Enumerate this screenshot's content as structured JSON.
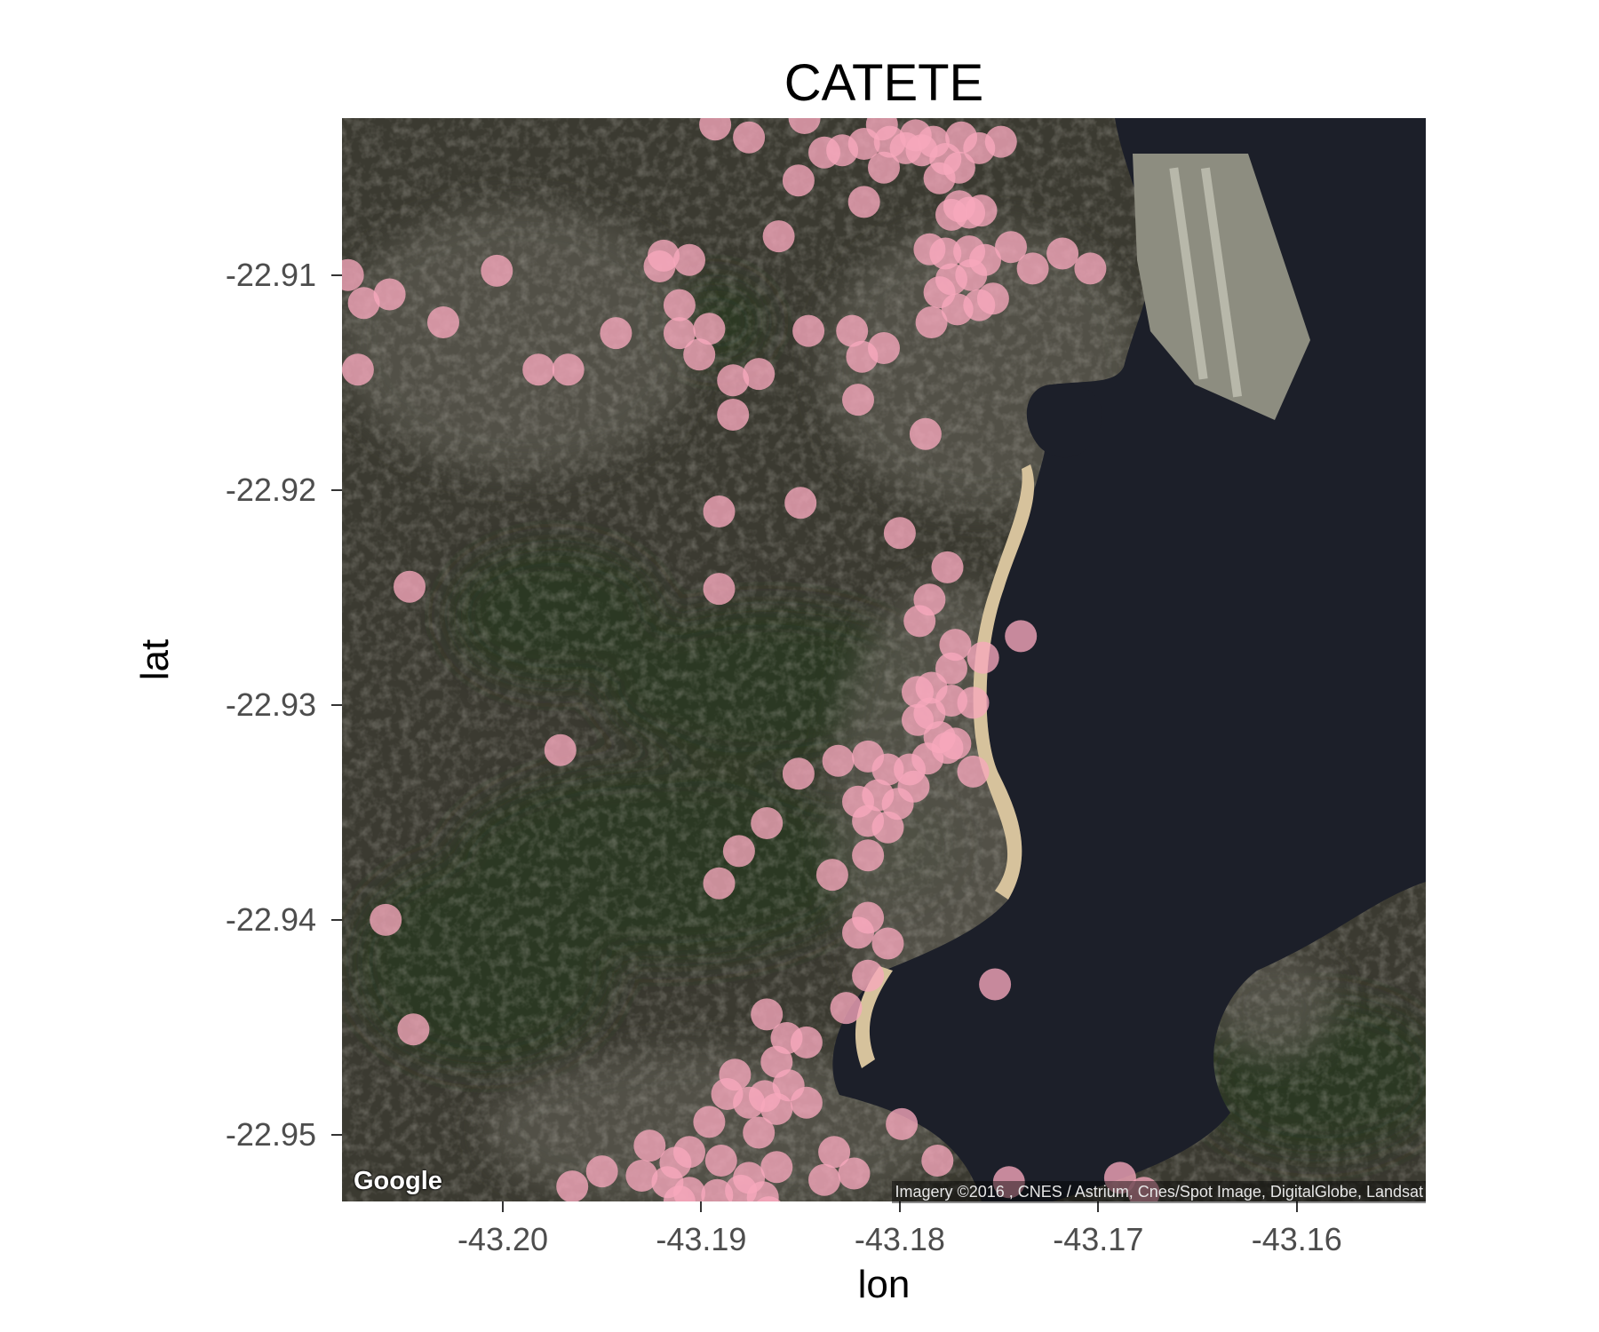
{
  "colors": {
    "point": "#f7a8bc",
    "land_base": "#3b3a31",
    "vegetation": "#2a3823",
    "urban": "#58564d",
    "water": "#1c1f29",
    "beach": "#d6c29c",
    "runway": "#8d8d80"
  },
  "map": {
    "imagery": "satellite",
    "logo": "Google",
    "attribution": "Imagery ©2016 , CNES / Astrium, Cnes/Spot Image, DigitalGlobe, Landsat"
  },
  "chart_data": {
    "type": "scatter",
    "title": "CATETE",
    "xlabel": "lon",
    "ylabel": "lat",
    "xlim": [
      -43.2081,
      -43.1535
    ],
    "ylim": [
      -22.9531,
      -22.9027
    ],
    "x_ticks": [
      -43.2,
      -43.19,
      -43.18,
      -43.17,
      -43.16
    ],
    "x_tick_labels": [
      "-43.20",
      "-43.19",
      "-43.18",
      "-43.17",
      "-43.16"
    ],
    "y_ticks": [
      -22.91,
      -22.92,
      -22.93,
      -22.94,
      -22.95
    ],
    "y_tick_labels": [
      "-22.91",
      "-22.92",
      "-22.93",
      "-22.94",
      "-22.95"
    ],
    "series": [
      {
        "points": [
          [
            -43.2078,
            -22.91
          ],
          [
            -43.207,
            -22.9113
          ],
          [
            -43.2057,
            -22.9109
          ],
          [
            -43.2073,
            -22.9144
          ],
          [
            -43.2003,
            -22.9098
          ],
          [
            -43.203,
            -22.9122
          ],
          [
            -43.1982,
            -22.9144
          ],
          [
            -43.1967,
            -22.9144
          ],
          [
            -43.1943,
            -22.9127
          ],
          [
            -43.1919,
            -22.9091
          ],
          [
            -43.1921,
            -22.9096
          ],
          [
            -43.1906,
            -22.9093
          ],
          [
            -43.1911,
            -22.9114
          ],
          [
            -43.1911,
            -22.9127
          ],
          [
            -43.1901,
            -22.9137
          ],
          [
            -43.1896,
            -22.9125
          ],
          [
            -43.1884,
            -22.9149
          ],
          [
            -43.1884,
            -22.9165
          ],
          [
            -43.1871,
            -22.9146
          ],
          [
            -43.1861,
            -22.9082
          ],
          [
            -43.1876,
            -22.9036
          ],
          [
            -43.1893,
            -22.903
          ],
          [
            -43.1848,
            -22.9027
          ],
          [
            -43.1851,
            -22.9056
          ],
          [
            -43.1838,
            -22.9043
          ],
          [
            -43.1829,
            -22.9042
          ],
          [
            -43.1818,
            -22.9039
          ],
          [
            -43.1818,
            -22.9066
          ],
          [
            -43.1805,
            -22.9038
          ],
          [
            -43.1797,
            -22.9041
          ],
          [
            -43.1808,
            -22.905
          ],
          [
            -43.1792,
            -22.9035
          ],
          [
            -43.1789,
            -22.9042
          ],
          [
            -43.1783,
            -22.9038
          ],
          [
            -43.1777,
            -22.9046
          ],
          [
            -43.177,
            -22.905
          ],
          [
            -43.176,
            -22.9041
          ],
          [
            -43.177,
            -22.9068
          ],
          [
            -43.178,
            -22.9055
          ],
          [
            -43.1774,
            -22.9072
          ],
          [
            -43.1765,
            -22.9071
          ],
          [
            -43.1759,
            -22.907
          ],
          [
            -43.1785,
            -22.9088
          ],
          [
            -43.1777,
            -22.909
          ],
          [
            -43.1765,
            -22.9089
          ],
          [
            -43.1757,
            -22.9093
          ],
          [
            -43.1764,
            -22.91
          ],
          [
            -43.1774,
            -22.9102
          ],
          [
            -43.178,
            -22.9108
          ],
          [
            -43.1771,
            -22.9116
          ],
          [
            -43.176,
            -22.9114
          ],
          [
            -43.1753,
            -22.9111
          ],
          [
            -43.1744,
            -22.9087
          ],
          [
            -43.1733,
            -22.9097
          ],
          [
            -43.1718,
            -22.909
          ],
          [
            -43.1704,
            -22.9097
          ],
          [
            -43.1749,
            -22.9038
          ],
          [
            -43.1784,
            -22.9122
          ],
          [
            -43.1769,
            -22.9036
          ],
          [
            -43.1809,
            -22.903
          ],
          [
            -43.1846,
            -22.9126
          ],
          [
            -43.1824,
            -22.9126
          ],
          [
            -43.1819,
            -22.9138
          ],
          [
            -43.1808,
            -22.9134
          ],
          [
            -43.1821,
            -22.9158
          ],
          [
            -43.1787,
            -22.9174
          ],
          [
            -43.185,
            -22.9206
          ],
          [
            -43.1891,
            -22.921
          ],
          [
            -43.18,
            -22.922
          ],
          [
            -43.1776,
            -22.9236
          ],
          [
            -43.1891,
            -22.9246
          ],
          [
            -43.1785,
            -22.9251
          ],
          [
            -43.179,
            -22.9261
          ],
          [
            -43.2047,
            -22.9245
          ],
          [
            -43.1739,
            -22.9268
          ],
          [
            -43.1772,
            -22.9272
          ],
          [
            -43.1758,
            -22.9278
          ],
          [
            -43.1774,
            -22.9283
          ],
          [
            -43.1784,
            -22.9292
          ],
          [
            -43.1791,
            -22.9294
          ],
          [
            -43.1774,
            -22.9298
          ],
          [
            -43.1763,
            -22.9299
          ],
          [
            -43.1785,
            -22.9304
          ],
          [
            -43.1791,
            -22.9307
          ],
          [
            -43.178,
            -22.9315
          ],
          [
            -43.1772,
            -22.9318
          ],
          [
            -43.1776,
            -22.932
          ],
          [
            -43.1763,
            -22.9331
          ],
          [
            -43.1786,
            -22.9325
          ],
          [
            -43.1795,
            -22.933
          ],
          [
            -43.1806,
            -22.933
          ],
          [
            -43.1816,
            -22.9324
          ],
          [
            -43.1831,
            -22.9326
          ],
          [
            -43.1851,
            -22.9332
          ],
          [
            -43.1793,
            -22.9338
          ],
          [
            -43.1811,
            -22.9342
          ],
          [
            -43.1821,
            -22.9345
          ],
          [
            -43.1801,
            -22.9346
          ],
          [
            -43.1816,
            -22.9354
          ],
          [
            -43.1806,
            -22.9357
          ],
          [
            -43.1816,
            -22.937
          ],
          [
            -43.1867,
            -22.9355
          ],
          [
            -43.1971,
            -22.9321
          ],
          [
            -43.1881,
            -22.9368
          ],
          [
            -43.1891,
            -22.9383
          ],
          [
            -43.1834,
            -22.9379
          ],
          [
            -43.1816,
            -22.9399
          ],
          [
            -43.1806,
            -22.9411
          ],
          [
            -43.1816,
            -22.9426
          ],
          [
            -43.1821,
            -22.9406
          ],
          [
            -43.1827,
            -22.9441
          ],
          [
            -43.1752,
            -22.943
          ],
          [
            -43.2059,
            -22.94
          ],
          [
            -43.2045,
            -22.9451
          ],
          [
            -43.1867,
            -22.9444
          ],
          [
            -43.1857,
            -22.9455
          ],
          [
            -43.1847,
            -22.9457
          ],
          [
            -43.1862,
            -22.9466
          ],
          [
            -43.1868,
            -22.9482
          ],
          [
            -43.1883,
            -22.9472
          ],
          [
            -43.1876,
            -22.9485
          ],
          [
            -43.1887,
            -22.9481
          ],
          [
            -43.1856,
            -22.9477
          ],
          [
            -43.1862,
            -22.9488
          ],
          [
            -43.1847,
            -22.9485
          ],
          [
            -43.1871,
            -22.9499
          ],
          [
            -43.1896,
            -22.9494
          ],
          [
            -43.1799,
            -22.9495
          ],
          [
            -43.1833,
            -22.9508
          ],
          [
            -43.1926,
            -22.9505
          ],
          [
            -43.1906,
            -22.9508
          ],
          [
            -43.189,
            -22.9512
          ],
          [
            -43.1862,
            -22.9515
          ],
          [
            -43.1876,
            -22.952
          ],
          [
            -43.1913,
            -22.9513
          ],
          [
            -43.1917,
            -22.9522
          ],
          [
            -43.193,
            -22.9519
          ],
          [
            -43.195,
            -22.9517
          ],
          [
            -43.1965,
            -22.9524
          ],
          [
            -43.1838,
            -22.9521
          ],
          [
            -43.1906,
            -22.9527
          ],
          [
            -43.1892,
            -22.9528
          ],
          [
            -43.188,
            -22.9526
          ],
          [
            -43.1911,
            -22.9531
          ],
          [
            -43.1869,
            -22.9529
          ],
          [
            -43.1781,
            -22.9512
          ],
          [
            -43.1745,
            -22.9522
          ],
          [
            -43.1689,
            -22.952
          ],
          [
            -43.1677,
            -22.9527
          ],
          [
            -43.1823,
            -22.9518
          ],
          [
            -43.1866,
            -22.9536
          ]
        ]
      }
    ]
  }
}
